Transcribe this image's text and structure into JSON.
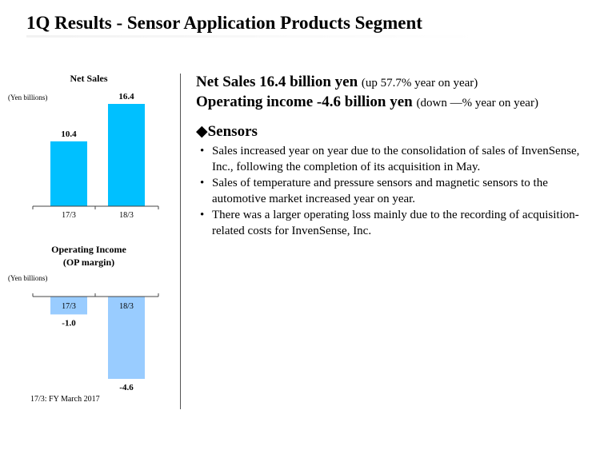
{
  "page": {
    "title": "1Q Results - Sensor Application Products Segment"
  },
  "chart_data": [
    {
      "type": "bar",
      "title": "Net Sales",
      "ylabel": "(Yen billions)",
      "categories": [
        "17/3",
        "18/3"
      ],
      "values": [
        10.4,
        16.4
      ],
      "value_labels": [
        "10.4",
        "16.4"
      ],
      "ylim": [
        0,
        16.4
      ],
      "color": "#00c0ff",
      "grid": false
    },
    {
      "type": "bar",
      "title": "Operating Income\n(OP margin)",
      "title_lines": [
        "Operating Income",
        "(OP margin)"
      ],
      "ylabel": "(Yen billions)",
      "categories": [
        "17/3",
        "18/3"
      ],
      "values": [
        -1.0,
        -4.6
      ],
      "value_labels": [
        "-1.0",
        "-4.6"
      ],
      "ylim": [
        -4.6,
        0
      ],
      "color": "#99ccff",
      "grid": false
    }
  ],
  "summary": {
    "net_sales_main": "Net Sales 16.4 billion yen",
    "net_sales_note": "(up 57.7% year on year)",
    "op_income_main": "Operating income -4.6 billion yen",
    "op_income_note": "(down —% year on year)",
    "section_heading": "◆Sensors",
    "bullet_symbol": "•",
    "bullets": [
      "Sales increased year on year due to the consolidation of sales of InvenSense, Inc., following the completion of its acquisition in May.",
      "Sales of temperature and pressure sensors and magnetic sensors to the automotive market increased year on year.",
      "There was a larger operating loss mainly due to the recording of acquisition-related costs for InvenSense, Inc."
    ]
  },
  "footnote": "17/3: FY March 2017"
}
